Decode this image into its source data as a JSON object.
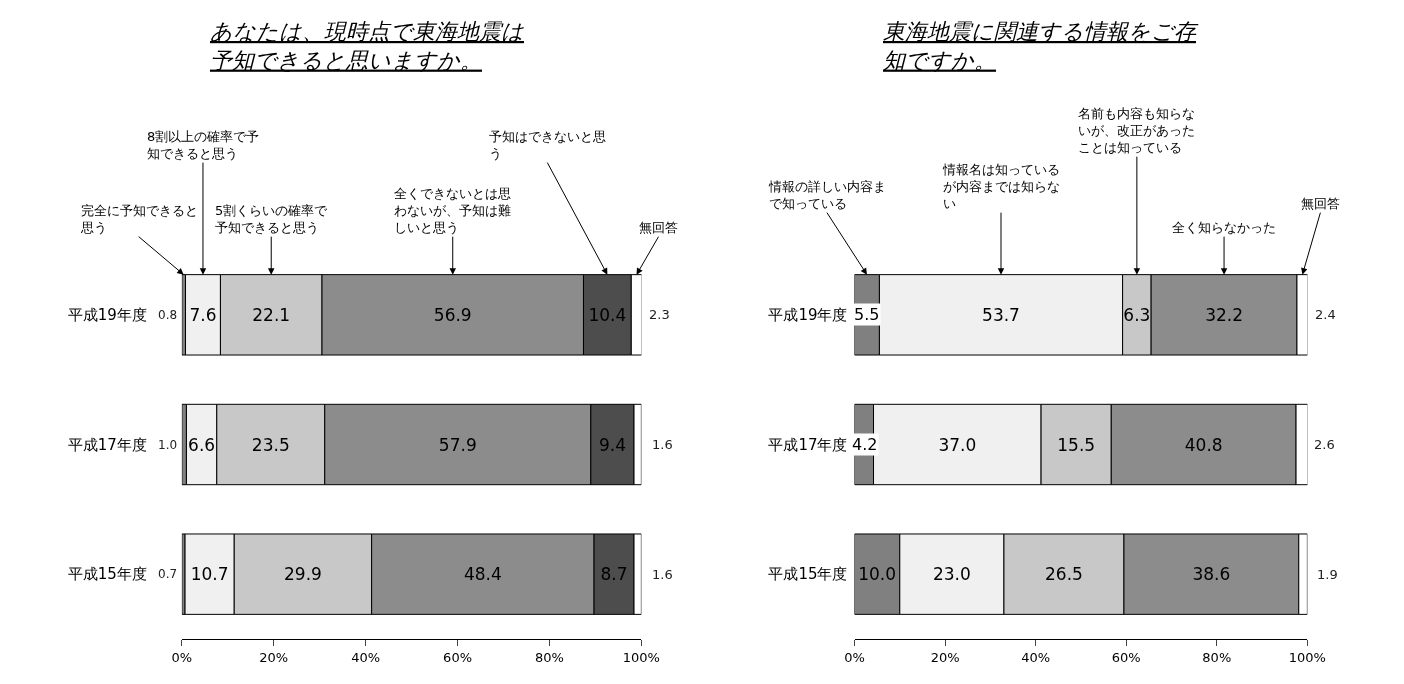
{
  "chart_data": [
    {
      "type": "bar",
      "orientation": "horizontal",
      "stacked": true,
      "title": "あなたは、現時点で東海地震は予知できると思いますか。",
      "categories": [
        "平成19年度",
        "平成17年度",
        "平成15年度"
      ],
      "xlim": [
        0,
        100
      ],
      "xticks": [
        {
          "value": 0,
          "label": "0%"
        },
        {
          "value": 20,
          "label": "20%"
        },
        {
          "value": 40,
          "label": "40%"
        },
        {
          "value": 60,
          "label": "60%"
        },
        {
          "value": 80,
          "label": "80%"
        },
        {
          "value": 100,
          "label": "100%"
        }
      ],
      "grid": false,
      "legend": false,
      "series": [
        {
          "name": "完全に予知できると思う",
          "color": "#808080",
          "values": [
            0.8,
            1.0,
            0.7
          ],
          "value_labels": [
            "0.8",
            "1.0",
            "0.7"
          ]
        },
        {
          "name": "8割以上の確率で予知できると思う",
          "color": "#f0f0f0",
          "values": [
            7.6,
            6.6,
            10.7
          ],
          "value_labels": [
            "7.6",
            "6.6",
            "10.7"
          ]
        },
        {
          "name": "5割くらいの確率で予知できると思う",
          "color": "#c8c8c8",
          "values": [
            22.1,
            23.5,
            29.9
          ],
          "value_labels": [
            "22.1",
            "23.5",
            "29.9"
          ]
        },
        {
          "name": "全くできないとは思わないが、予知は難しいと思う",
          "color": "#8c8c8c",
          "values": [
            56.9,
            57.9,
            48.4
          ],
          "value_labels": [
            "56.9",
            "57.9",
            "48.4"
          ]
        },
        {
          "name": "予知はできないと思う",
          "color": "#4d4d4d",
          "values": [
            10.4,
            9.4,
            8.7
          ],
          "value_labels": [
            "10.4",
            "9.4",
            "8.7"
          ]
        },
        {
          "name": "無回答",
          "color": "#ffffff",
          "values": [
            2.3,
            1.6,
            1.6
          ],
          "value_labels": [
            "2.3",
            "1.6",
            "1.6"
          ]
        }
      ]
    },
    {
      "type": "bar",
      "orientation": "horizontal",
      "stacked": true,
      "title": "東海地震に関連する情報をご存知ですか。",
      "categories": [
        "平成19年度",
        "平成17年度",
        "平成15年度"
      ],
      "xlim": [
        0,
        100
      ],
      "xticks": [
        {
          "value": 0,
          "label": "0%"
        },
        {
          "value": 20,
          "label": "20%"
        },
        {
          "value": 40,
          "label": "40%"
        },
        {
          "value": 60,
          "label": "60%"
        },
        {
          "value": 80,
          "label": "80%"
        },
        {
          "value": 100,
          "label": "100%"
        }
      ],
      "grid": false,
      "legend": false,
      "series": [
        {
          "name": "情報の詳しい内容まで知っている",
          "color": "#808080",
          "values": [
            5.5,
            4.2,
            10.0
          ],
          "value_labels": [
            "5.5",
            "4.2",
            "10.0"
          ]
        },
        {
          "name": "情報名は知っているが内容までは知らない",
          "color": "#f0f0f0",
          "values": [
            53.7,
            37.0,
            23.0
          ],
          "value_labels": [
            "53.7",
            "37.0",
            "23.0"
          ]
        },
        {
          "name": "名前も内容も知らないが、改正があったことは知っている",
          "color": "#c8c8c8",
          "values": [
            6.3,
            15.5,
            26.5
          ],
          "value_labels": [
            "6.3",
            "15.5",
            "26.5"
          ]
        },
        {
          "name": "全く知らなかった",
          "color": "#8c8c8c",
          "values": [
            32.2,
            40.8,
            38.6
          ],
          "value_labels": [
            "32.2",
            "40.8",
            "38.6"
          ]
        },
        {
          "name": "無回答",
          "color": "#ffffff",
          "values": [
            2.4,
            2.6,
            1.9
          ],
          "value_labels": [
            "2.4",
            "2.6",
            "1.9"
          ]
        }
      ]
    }
  ]
}
